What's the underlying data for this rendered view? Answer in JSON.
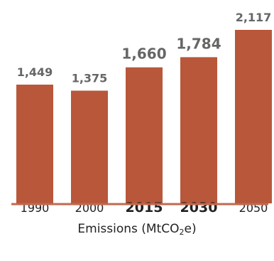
{
  "chart_data": {
    "type": "bar",
    "categories": [
      "1990",
      "2000",
      "2015",
      "2030",
      "2050"
    ],
    "values": [
      1449,
      1375,
      1660,
      1784,
      2117
    ],
    "value_labels": [
      "1,449",
      "1,375",
      "1,660",
      "1,784",
      "2,117"
    ],
    "emphasized_categories": [
      "2015",
      "2030"
    ],
    "xlabel": {
      "prefix": "Emissions (MtCO",
      "subscript": "2",
      "suffix": "e)"
    },
    "ylim": [
      0,
      2117
    ],
    "grid": false
  },
  "colors": {
    "bar": "#b8573a",
    "axis": "#c06a4f",
    "value_label": "#666666",
    "tick_label": "#222222"
  }
}
